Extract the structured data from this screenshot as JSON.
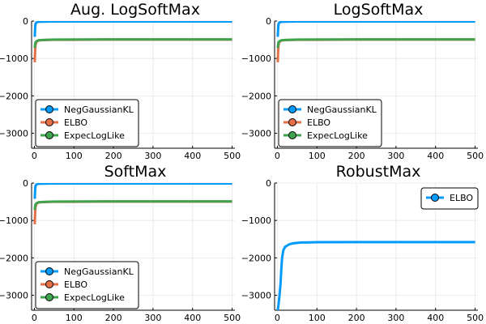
{
  "chart_data": [
    {
      "type": "line",
      "title": "Aug. LogSoftMax",
      "xlim": [
        -7,
        507
      ],
      "ylim": [
        -3400,
        0
      ],
      "xticks": [
        0,
        100,
        200,
        300,
        400,
        500
      ],
      "yticks": [
        0,
        -1000,
        -2000,
        -3000
      ],
      "grid": true,
      "legend_position": "bottom-left",
      "series": [
        {
          "name": "NegGaussianKL",
          "color": "#009AFA",
          "x": [
            1,
            2,
            3,
            5,
            10,
            20,
            50,
            100,
            200,
            300,
            400,
            500
          ],
          "y": [
            -420,
            -180,
            -80,
            -40,
            -20,
            -15,
            -12,
            -11,
            -10,
            -10,
            -10,
            -10
          ]
        },
        {
          "name": "ELBO",
          "color": "#E36F47",
          "x": [
            1,
            2,
            3,
            5,
            10,
            20,
            50,
            100,
            200,
            300,
            400,
            500
          ],
          "y": [
            -1100,
            -780,
            -640,
            -560,
            -520,
            -510,
            -500,
            -500,
            -495,
            -495,
            -495,
            -495
          ]
        },
        {
          "name": "ExpecLogLike",
          "color": "#3EA44E",
          "x": [
            1,
            2,
            3,
            5,
            10,
            20,
            50,
            100,
            200,
            300,
            400,
            500
          ],
          "y": [
            -720,
            -620,
            -570,
            -540,
            -515,
            -505,
            -495,
            -492,
            -490,
            -490,
            -490,
            -490
          ]
        }
      ]
    },
    {
      "type": "line",
      "title": "LogSoftMax",
      "xlim": [
        -7,
        507
      ],
      "ylim": [
        -3400,
        0
      ],
      "xticks": [
        0,
        100,
        200,
        300,
        400,
        500
      ],
      "yticks": [
        0,
        -1000,
        -2000,
        -3000
      ],
      "grid": true,
      "legend_position": "bottom-left",
      "series": [
        {
          "name": "NegGaussianKL",
          "color": "#009AFA",
          "x": [
            1,
            2,
            3,
            5,
            10,
            20,
            50,
            100,
            200,
            300,
            400,
            500
          ],
          "y": [
            -420,
            -180,
            -80,
            -40,
            -20,
            -15,
            -12,
            -11,
            -10,
            -10,
            -10,
            -10
          ]
        },
        {
          "name": "ELBO",
          "color": "#E36F47",
          "x": [
            1,
            2,
            3,
            5,
            10,
            20,
            50,
            100,
            200,
            300,
            400,
            500
          ],
          "y": [
            -1100,
            -780,
            -640,
            -560,
            -520,
            -510,
            -500,
            -500,
            -495,
            -495,
            -495,
            -495
          ]
        },
        {
          "name": "ExpecLogLike",
          "color": "#3EA44E",
          "x": [
            1,
            2,
            3,
            5,
            10,
            20,
            50,
            100,
            200,
            300,
            400,
            500
          ],
          "y": [
            -720,
            -620,
            -570,
            -540,
            -515,
            -505,
            -495,
            -492,
            -490,
            -490,
            -490,
            -490
          ]
        }
      ]
    },
    {
      "type": "line",
      "title": "SoftMax",
      "xlim": [
        -7,
        507
      ],
      "ylim": [
        -3400,
        0
      ],
      "xticks": [
        0,
        100,
        200,
        300,
        400,
        500
      ],
      "yticks": [
        0,
        -1000,
        -2000,
        -3000
      ],
      "grid": true,
      "legend_position": "bottom-left",
      "series": [
        {
          "name": "NegGaussianKL",
          "color": "#009AFA",
          "x": [
            1,
            2,
            3,
            5,
            10,
            20,
            50,
            100,
            200,
            300,
            400,
            500
          ],
          "y": [
            -420,
            -180,
            -80,
            -40,
            -20,
            -15,
            -12,
            -11,
            -10,
            -10,
            -10,
            -10
          ]
        },
        {
          "name": "ELBO",
          "color": "#E36F47",
          "x": [
            1,
            2,
            3,
            5,
            10,
            20,
            50,
            100,
            200,
            300,
            400,
            500
          ],
          "y": [
            -1100,
            -780,
            -640,
            -560,
            -520,
            -510,
            -500,
            -500,
            -495,
            -495,
            -495,
            -495
          ]
        },
        {
          "name": "ExpecLogLike",
          "color": "#3EA44E",
          "x": [
            1,
            2,
            3,
            5,
            10,
            20,
            50,
            100,
            200,
            300,
            400,
            500
          ],
          "y": [
            -720,
            -620,
            -570,
            -540,
            -515,
            -505,
            -495,
            -492,
            -490,
            -490,
            -490,
            -490
          ]
        }
      ]
    },
    {
      "type": "line",
      "title": "RobustMax",
      "xlim": [
        -7,
        507
      ],
      "ylim": [
        -3400,
        0
      ],
      "xticks": [
        0,
        100,
        200,
        300,
        400,
        500
      ],
      "yticks": [
        0,
        -1000,
        -2000,
        -3000
      ],
      "grid": true,
      "legend_position": "top-right",
      "series": [
        {
          "name": "ELBO",
          "color": "#009AFA",
          "x": [
            1,
            3,
            5,
            8,
            10,
            12,
            15,
            20,
            30,
            40,
            60,
            80,
            100,
            200,
            300,
            400,
            500
          ],
          "y": [
            -3400,
            -3250,
            -3050,
            -2700,
            -2300,
            -2000,
            -1800,
            -1700,
            -1640,
            -1610,
            -1590,
            -1585,
            -1580,
            -1578,
            -1578,
            -1578,
            -1578
          ]
        }
      ]
    }
  ]
}
